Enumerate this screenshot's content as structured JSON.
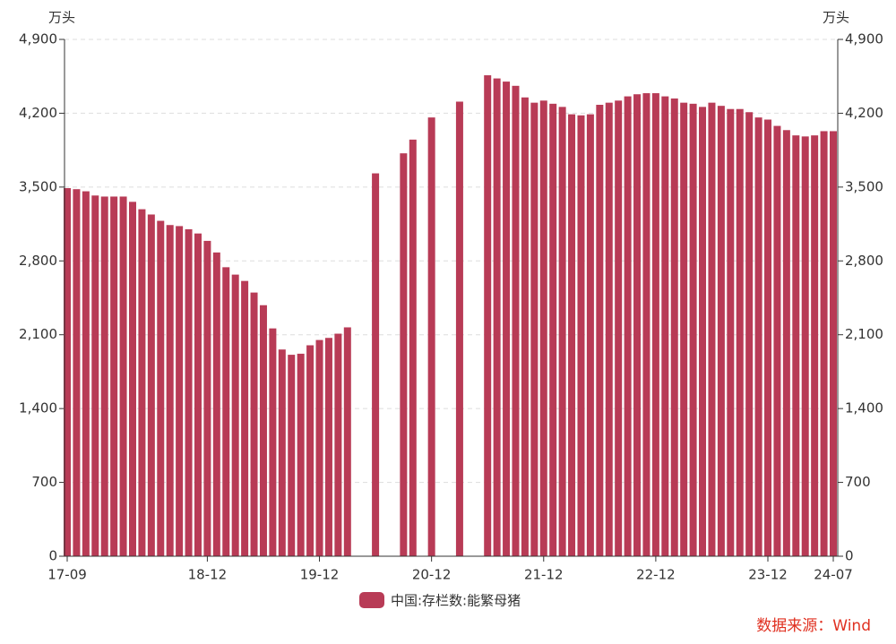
{
  "chart_data": {
    "type": "bar",
    "y_unit": "万头",
    "series": [
      {
        "name": "中国:存栏数:能繁母猪",
        "color": "#b83b56",
        "values": [
          3490,
          3480,
          3460,
          3420,
          3410,
          3410,
          3410,
          3360,
          3290,
          3240,
          3180,
          3140,
          3130,
          3100,
          3060,
          2990,
          2880,
          2740,
          2670,
          2610,
          2500,
          2380,
          2160,
          1960,
          1910,
          1920,
          2000,
          2050,
          2070,
          2110,
          2170,
          null,
          null,
          3630,
          null,
          null,
          3820,
          3950,
          null,
          4160,
          null,
          null,
          4310,
          null,
          null,
          4560,
          4530,
          4500,
          4460,
          4350,
          4300,
          4320,
          4290,
          4260,
          4190,
          4180,
          4190,
          4280,
          4300,
          4320,
          4360,
          4380,
          4390,
          4390,
          4360,
          4340,
          4300,
          4290,
          4260,
          4300,
          4270,
          4240,
          4240,
          4210,
          4160,
          4140,
          4080,
          4040,
          3990,
          3980,
          3990,
          4030,
          4030
        ]
      }
    ],
    "categories": [
      "17-09",
      null,
      null,
      null,
      null,
      null,
      null,
      null,
      null,
      null,
      null,
      null,
      null,
      null,
      null,
      "18-12",
      null,
      null,
      null,
      null,
      null,
      null,
      null,
      null,
      null,
      null,
      null,
      "19-12",
      null,
      null,
      null,
      null,
      null,
      null,
      null,
      null,
      null,
      null,
      null,
      "20-12",
      null,
      null,
      null,
      null,
      null,
      null,
      null,
      null,
      null,
      null,
      null,
      "21-12",
      null,
      null,
      null,
      null,
      null,
      null,
      null,
      null,
      null,
      null,
      null,
      "22-12",
      null,
      null,
      null,
      null,
      null,
      null,
      null,
      null,
      null,
      null,
      null,
      "23-12",
      null,
      null,
      null,
      null,
      null,
      null,
      "24-07"
    ],
    "ylim": [
      0,
      4900
    ],
    "yticks": [
      0,
      700,
      {
        "value": 1400,
        "label": "1,400"
      },
      {
        "value": 2100,
        "label": "2,100"
      },
      {
        "value": 2800,
        "label": "2,800"
      },
      {
        "value": 3500,
        "label": "3,500"
      },
      {
        "value": 4200,
        "label": "4,200"
      },
      {
        "value": 4900,
        "label": "4,900"
      }
    ],
    "grid": true,
    "source": "数据来源：Wind"
  }
}
